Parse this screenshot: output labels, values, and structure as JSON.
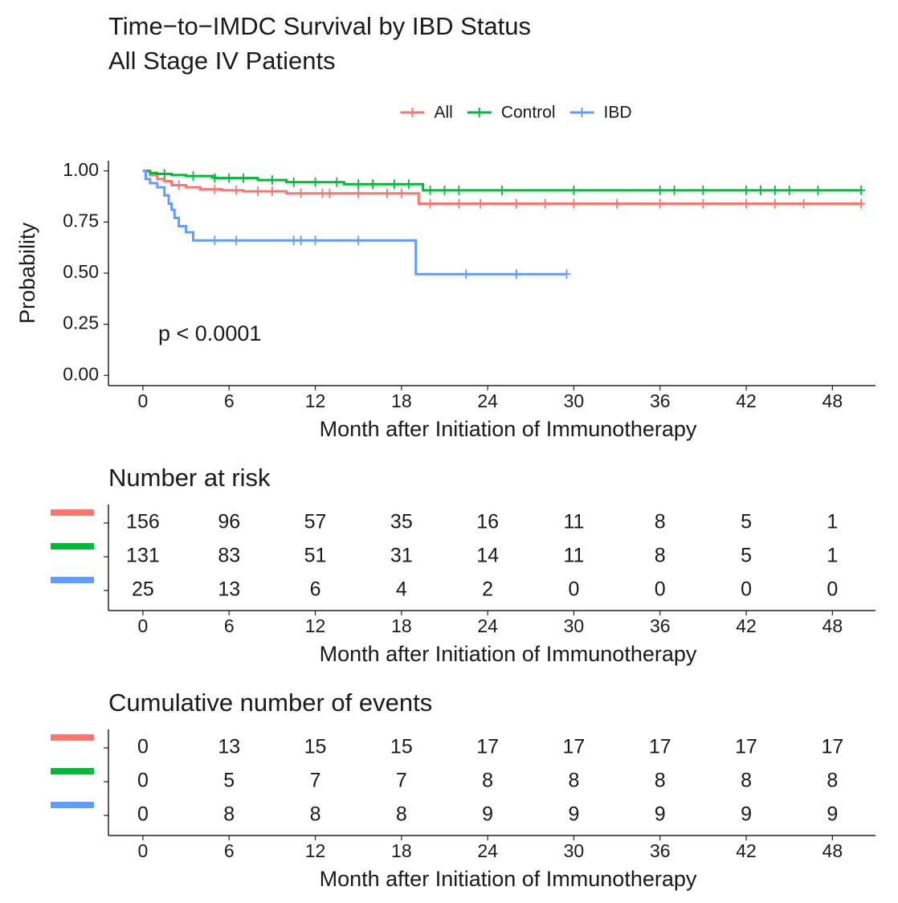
{
  "chart_data": [
    {
      "type": "line",
      "step": true,
      "title": "Time−to−IMDC Survival by IBD Status",
      "subtitle": "All Stage IV Patients",
      "x_label": "Month after Initiation of Immunotherapy",
      "y_label": "Probability",
      "annotation": "p < 0.0001",
      "legend": "top",
      "xlim": [
        -2.4,
        51
      ],
      "ylim": [
        -0.05,
        1.05
      ],
      "xticks": [
        0,
        6,
        12,
        18,
        24,
        30,
        36,
        42,
        48
      ],
      "yticks": [
        {
          "value": 0,
          "label": "0.00"
        },
        0.25,
        {
          "value": 0.5,
          "label": "0.50"
        },
        0.75,
        {
          "value": 1,
          "label": "1.00"
        }
      ],
      "series": [
        {
          "name": "All",
          "color": "#F8766D",
          "x": [
            0,
            0.5,
            1,
            1.5,
            2,
            3,
            4,
            5.5,
            7,
            10,
            19.2,
            50
          ],
          "values": [
            1,
            0.98,
            0.96,
            0.95,
            0.93,
            0.92,
            0.91,
            0.905,
            0.9,
            0.89,
            0.84,
            0.84
          ],
          "censor": [
            2.5,
            5,
            6.5,
            8,
            9,
            11,
            12.5,
            13,
            15,
            17,
            18,
            20,
            22,
            23.5,
            26,
            28,
            30,
            33,
            36,
            39,
            42,
            44,
            46,
            50
          ]
        },
        {
          "name": "Control",
          "color": "#00BA38",
          "x": [
            0,
            0.5,
            1,
            2,
            3,
            5,
            8,
            10,
            14,
            19.5,
            50
          ],
          "values": [
            1,
            0.99,
            0.985,
            0.98,
            0.975,
            0.965,
            0.955,
            0.945,
            0.935,
            0.905,
            0.905
          ],
          "censor": [
            1.5,
            3.5,
            5,
            6,
            7,
            9,
            10.5,
            12,
            13.5,
            15,
            16,
            17.5,
            18.5,
            20,
            21,
            22,
            25,
            30,
            36,
            37,
            39,
            42,
            43,
            44,
            45,
            47,
            50
          ]
        },
        {
          "name": "IBD",
          "color": "#619CFF",
          "x": [
            0,
            0.2,
            0.5,
            1,
            1.5,
            1.8,
            2,
            2.2,
            2.5,
            3,
            3.5,
            19,
            29.5
          ],
          "values": [
            1,
            0.96,
            0.94,
            0.92,
            0.88,
            0.84,
            0.81,
            0.77,
            0.73,
            0.7,
            0.66,
            0.495,
            0.495
          ],
          "censor": [
            5,
            6.5,
            10.5,
            11,
            12,
            15,
            22.5,
            26,
            29.5
          ]
        }
      ]
    },
    {
      "type": "table",
      "title": "Number at risk",
      "x_label": "Month after Initiation of Immunotherapy",
      "xlim": [
        -2.4,
        51
      ],
      "xticks": [
        0,
        6,
        12,
        18,
        24,
        30,
        36,
        42,
        48
      ],
      "series": [
        {
          "color": "#F8766D",
          "values": [
            156,
            96,
            57,
            35,
            16,
            11,
            8,
            5,
            1
          ]
        },
        {
          "color": "#00BA38",
          "values": [
            131,
            83,
            51,
            31,
            14,
            11,
            8,
            5,
            1
          ]
        },
        {
          "color": "#619CFF",
          "values": [
            25,
            13,
            6,
            4,
            2,
            0,
            0,
            0,
            0
          ]
        }
      ]
    },
    {
      "type": "table",
      "title": "Cumulative number of events",
      "x_label": "Month after Initiation of Immunotherapy",
      "xlim": [
        -2.4,
        51
      ],
      "xticks": [
        0,
        6,
        12,
        18,
        24,
        30,
        36,
        42,
        48
      ],
      "series": [
        {
          "color": "#F8766D",
          "values": [
            0,
            13,
            15,
            15,
            17,
            17,
            17,
            17,
            17
          ]
        },
        {
          "color": "#00BA38",
          "values": [
            0,
            5,
            7,
            7,
            8,
            8,
            8,
            8,
            8
          ]
        },
        {
          "color": "#619CFF",
          "values": [
            0,
            8,
            8,
            8,
            9,
            9,
            9,
            9,
            9
          ]
        }
      ]
    }
  ]
}
